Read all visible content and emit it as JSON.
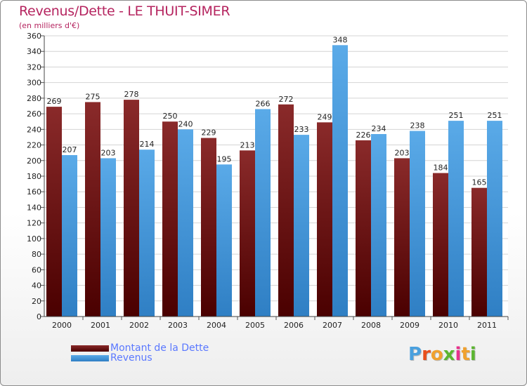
{
  "header": {
    "title": "Revenus/Dette - LE THUIT-SIMER",
    "subtitle": "(en milliers d'€)"
  },
  "colors": {
    "dette": "#7f1b1b",
    "revenus": "#4a9be0",
    "title": "#b5245f",
    "legend_text": "#5a78ff"
  },
  "chart_data": {
    "type": "bar",
    "title": "Revenus/Dette - LE THUIT-SIMER",
    "subtitle": "(en milliers d'€)",
    "categories": [
      "2000",
      "2001",
      "2002",
      "2003",
      "2004",
      "2005",
      "2006",
      "2007",
      "2008",
      "2009",
      "2010",
      "2011"
    ],
    "series": [
      {
        "name": "Montant de la Dette",
        "values": [
          269,
          275,
          278,
          250,
          229,
          213,
          272,
          249,
          226,
          203,
          184,
          165
        ]
      },
      {
        "name": "Revenus",
        "values": [
          207,
          203,
          214,
          240,
          195,
          266,
          233,
          348,
          234,
          238,
          251,
          251
        ]
      }
    ],
    "ylim": [
      0,
      360
    ],
    "yticks": [
      0,
      20,
      40,
      60,
      80,
      100,
      120,
      140,
      160,
      180,
      200,
      220,
      240,
      260,
      280,
      300,
      320,
      340,
      360
    ],
    "grid": true,
    "legend_position": "bottom-left"
  },
  "legend": {
    "items": [
      {
        "label": "Montant de la Dette"
      },
      {
        "label": "Revenus"
      }
    ]
  },
  "logo": {
    "text": "Proxiti",
    "letter_colors": [
      "#4aa0de",
      "#e84e1b",
      "#f0a12e",
      "#5cb531",
      "#e8308c",
      "#f0a12e",
      "#5cb531"
    ]
  }
}
